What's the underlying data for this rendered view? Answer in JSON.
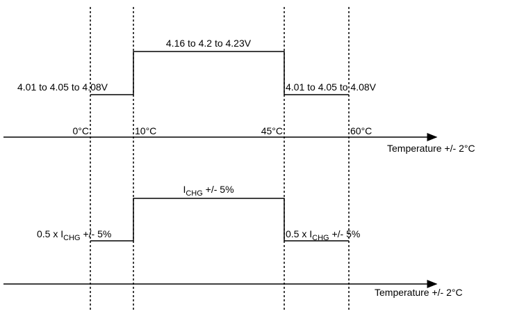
{
  "upper_profile": {
    "high_label": "4.16 to 4.2 to 4.23V",
    "low_left_label": "4.01 to 4.05 to 4.08V",
    "low_right_label": "4.01 to 4.05 to 4.08V"
  },
  "temperatures": [
    "0°C",
    "10°C",
    "45°C",
    "60°C"
  ],
  "upper_axis_label": "Temperature +/- 2°C",
  "lower_profile": {
    "high_label": {
      "prefix": "I",
      "subscript": "CHG",
      "suffix": " +/- 5%"
    },
    "low_left_label": {
      "prefix": "0.5 x I",
      "subscript": "CHG",
      "suffix": " +/- 5%"
    },
    "low_right_label": {
      "prefix": "0.5 x I",
      "subscript": "CHG",
      "suffix": " +/- 5%"
    }
  },
  "lower_axis_label": "Temperature +/- 2°C"
}
